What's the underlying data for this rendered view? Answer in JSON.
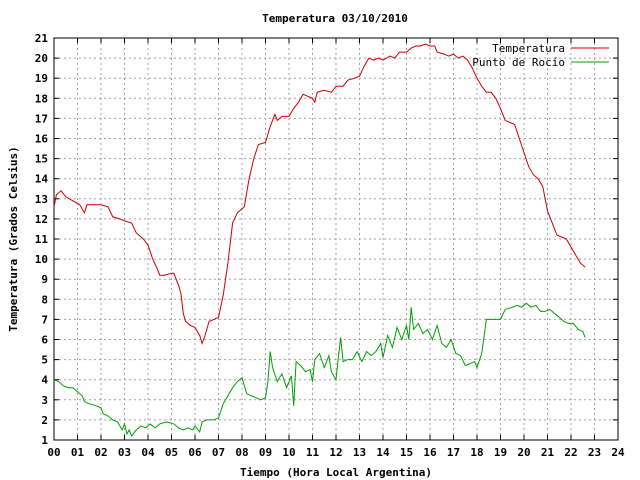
{
  "chart_data": {
    "type": "line",
    "title": "Temperatura 03/10/2010",
    "xlabel": "Tiempo (Hora Local Argentina)",
    "ylabel": "Temperatura (Grados Celsius)",
    "xlim": [
      0,
      24
    ],
    "ylim": [
      1,
      21
    ],
    "xticks": [
      "00",
      "01",
      "02",
      "03",
      "04",
      "05",
      "06",
      "07",
      "08",
      "09",
      "10",
      "11",
      "12",
      "13",
      "14",
      "15",
      "16",
      "17",
      "18",
      "19",
      "20",
      "21",
      "22",
      "23",
      "24"
    ],
    "yticks": [
      1,
      2,
      3,
      4,
      5,
      6,
      7,
      8,
      9,
      10,
      11,
      12,
      13,
      14,
      15,
      16,
      17,
      18,
      19,
      20,
      21
    ],
    "grid": true,
    "legend_position": "top-right",
    "series": [
      {
        "name": "Temperatura",
        "color": "#cc0000",
        "points": [
          [
            0.0,
            12.6
          ],
          [
            0.1,
            13.2
          ],
          [
            0.3,
            13.4
          ],
          [
            0.5,
            13.1
          ],
          [
            0.8,
            12.9
          ],
          [
            1.1,
            12.7
          ],
          [
            1.3,
            12.3
          ],
          [
            1.4,
            12.7
          ],
          [
            1.7,
            12.7
          ],
          [
            2.0,
            12.7
          ],
          [
            2.3,
            12.6
          ],
          [
            2.5,
            12.1
          ],
          [
            2.8,
            12.0
          ],
          [
            3.0,
            11.9
          ],
          [
            3.3,
            11.8
          ],
          [
            3.5,
            11.3
          ],
          [
            3.8,
            11.0
          ],
          [
            4.0,
            10.7
          ],
          [
            4.2,
            10.0
          ],
          [
            4.4,
            9.5
          ],
          [
            4.5,
            9.2
          ],
          [
            4.7,
            9.2
          ],
          [
            5.0,
            9.3
          ],
          [
            5.1,
            9.3
          ],
          [
            5.3,
            8.7
          ],
          [
            5.4,
            8.3
          ],
          [
            5.5,
            7.3
          ],
          [
            5.6,
            6.9
          ],
          [
            5.8,
            6.7
          ],
          [
            6.0,
            6.6
          ],
          [
            6.1,
            6.4
          ],
          [
            6.2,
            6.2
          ],
          [
            6.3,
            5.8
          ],
          [
            6.4,
            6.1
          ],
          [
            6.6,
            6.9
          ],
          [
            6.8,
            7.0
          ],
          [
            7.0,
            7.1
          ],
          [
            7.2,
            8.2
          ],
          [
            7.4,
            9.8
          ],
          [
            7.6,
            11.8
          ],
          [
            7.8,
            12.3
          ],
          [
            8.1,
            12.6
          ],
          [
            8.3,
            14.0
          ],
          [
            8.5,
            15.0
          ],
          [
            8.7,
            15.7
          ],
          [
            9.0,
            15.8
          ],
          [
            9.2,
            16.6
          ],
          [
            9.4,
            17.2
          ],
          [
            9.5,
            16.9
          ],
          [
            9.7,
            17.1
          ],
          [
            10.0,
            17.1
          ],
          [
            10.2,
            17.5
          ],
          [
            10.4,
            17.8
          ],
          [
            10.6,
            18.2
          ],
          [
            10.8,
            18.1
          ],
          [
            11.0,
            18.0
          ],
          [
            11.1,
            17.8
          ],
          [
            11.2,
            18.3
          ],
          [
            11.5,
            18.4
          ],
          [
            11.8,
            18.3
          ],
          [
            12.0,
            18.6
          ],
          [
            12.3,
            18.6
          ],
          [
            12.5,
            18.9
          ],
          [
            12.8,
            19.0
          ],
          [
            13.0,
            19.1
          ],
          [
            13.2,
            19.6
          ],
          [
            13.4,
            20.0
          ],
          [
            13.6,
            19.9
          ],
          [
            13.8,
            20.0
          ],
          [
            14.0,
            19.9
          ],
          [
            14.3,
            20.1
          ],
          [
            14.5,
            20.0
          ],
          [
            14.7,
            20.3
          ],
          [
            15.0,
            20.3
          ],
          [
            15.2,
            20.5
          ],
          [
            15.4,
            20.6
          ],
          [
            15.6,
            20.6
          ],
          [
            15.8,
            20.7
          ],
          [
            16.0,
            20.6
          ],
          [
            16.2,
            20.6
          ],
          [
            16.3,
            20.3
          ],
          [
            16.6,
            20.2
          ],
          [
            16.8,
            20.1
          ],
          [
            17.0,
            20.2
          ],
          [
            17.2,
            20.0
          ],
          [
            17.4,
            20.1
          ],
          [
            17.6,
            19.9
          ],
          [
            17.8,
            19.5
          ],
          [
            18.0,
            19.0
          ],
          [
            18.2,
            18.6
          ],
          [
            18.4,
            18.3
          ],
          [
            18.6,
            18.3
          ],
          [
            18.8,
            18.0
          ],
          [
            19.0,
            17.5
          ],
          [
            19.2,
            16.9
          ],
          [
            19.4,
            16.8
          ],
          [
            19.6,
            16.7
          ],
          [
            19.8,
            16.0
          ],
          [
            20.0,
            15.3
          ],
          [
            20.2,
            14.6
          ],
          [
            20.4,
            14.2
          ],
          [
            20.6,
            14.0
          ],
          [
            20.8,
            13.6
          ],
          [
            21.0,
            12.4
          ],
          [
            21.2,
            11.8
          ],
          [
            21.4,
            11.2
          ],
          [
            21.6,
            11.1
          ],
          [
            21.8,
            11.0
          ],
          [
            22.0,
            10.6
          ],
          [
            22.2,
            10.2
          ],
          [
            22.4,
            9.8
          ],
          [
            22.6,
            9.6
          ]
        ]
      },
      {
        "name": "Punto de Rocío",
        "color": "#00a000",
        "points": [
          [
            0.0,
            4.0
          ],
          [
            0.2,
            3.9
          ],
          [
            0.4,
            3.7
          ],
          [
            0.6,
            3.6
          ],
          [
            0.8,
            3.6
          ],
          [
            1.0,
            3.4
          ],
          [
            1.2,
            3.2
          ],
          [
            1.3,
            2.9
          ],
          [
            1.5,
            2.8
          ],
          [
            1.8,
            2.7
          ],
          [
            2.0,
            2.6
          ],
          [
            2.1,
            2.3
          ],
          [
            2.3,
            2.2
          ],
          [
            2.5,
            2.0
          ],
          [
            2.7,
            1.9
          ],
          [
            2.9,
            1.5
          ],
          [
            3.0,
            1.8
          ],
          [
            3.1,
            1.3
          ],
          [
            3.2,
            1.5
          ],
          [
            3.3,
            1.2
          ],
          [
            3.5,
            1.5
          ],
          [
            3.7,
            1.7
          ],
          [
            3.9,
            1.6
          ],
          [
            4.1,
            1.8
          ],
          [
            4.3,
            1.6
          ],
          [
            4.5,
            1.8
          ],
          [
            4.8,
            1.9
          ],
          [
            5.1,
            1.8
          ],
          [
            5.3,
            1.6
          ],
          [
            5.5,
            1.5
          ],
          [
            5.7,
            1.6
          ],
          [
            5.9,
            1.5
          ],
          [
            6.0,
            1.7
          ],
          [
            6.2,
            1.4
          ],
          [
            6.3,
            1.9
          ],
          [
            6.5,
            2.0
          ],
          [
            6.8,
            2.0
          ],
          [
            7.0,
            2.1
          ],
          [
            7.2,
            2.8
          ],
          [
            7.4,
            3.2
          ],
          [
            7.6,
            3.6
          ],
          [
            7.8,
            3.9
          ],
          [
            8.0,
            4.1
          ],
          [
            8.2,
            3.3
          ],
          [
            8.4,
            3.2
          ],
          [
            8.6,
            3.1
          ],
          [
            8.8,
            3.0
          ],
          [
            9.0,
            3.1
          ],
          [
            9.1,
            3.9
          ],
          [
            9.2,
            5.4
          ],
          [
            9.3,
            4.6
          ],
          [
            9.5,
            3.9
          ],
          [
            9.7,
            4.3
          ],
          [
            9.9,
            3.6
          ],
          [
            10.1,
            4.2
          ],
          [
            10.2,
            2.7
          ],
          [
            10.3,
            4.9
          ],
          [
            10.5,
            4.7
          ],
          [
            10.7,
            4.4
          ],
          [
            10.9,
            4.5
          ],
          [
            11.0,
            3.9
          ],
          [
            11.1,
            5.0
          ],
          [
            11.3,
            5.3
          ],
          [
            11.5,
            4.6
          ],
          [
            11.7,
            5.2
          ],
          [
            11.8,
            4.4
          ],
          [
            12.0,
            4.0
          ],
          [
            12.1,
            5.1
          ],
          [
            12.2,
            6.1
          ],
          [
            12.3,
            4.9
          ],
          [
            12.5,
            5.0
          ],
          [
            12.7,
            5.0
          ],
          [
            12.9,
            5.4
          ],
          [
            13.1,
            4.9
          ],
          [
            13.3,
            5.4
          ],
          [
            13.5,
            5.2
          ],
          [
            13.7,
            5.4
          ],
          [
            13.9,
            5.8
          ],
          [
            14.0,
            5.1
          ],
          [
            14.2,
            6.2
          ],
          [
            14.4,
            5.6
          ],
          [
            14.6,
            6.6
          ],
          [
            14.8,
            6.0
          ],
          [
            15.0,
            6.7
          ],
          [
            15.1,
            6.0
          ],
          [
            15.2,
            7.6
          ],
          [
            15.3,
            6.5
          ],
          [
            15.5,
            6.8
          ],
          [
            15.7,
            6.3
          ],
          [
            15.9,
            6.5
          ],
          [
            16.1,
            6.0
          ],
          [
            16.3,
            6.7
          ],
          [
            16.5,
            5.8
          ],
          [
            16.7,
            5.6
          ],
          [
            16.9,
            6.0
          ],
          [
            17.1,
            5.3
          ],
          [
            17.3,
            5.2
          ],
          [
            17.5,
            4.7
          ],
          [
            17.7,
            4.8
          ],
          [
            17.9,
            4.9
          ],
          [
            18.0,
            4.6
          ],
          [
            18.2,
            5.3
          ],
          [
            18.4,
            7.0
          ],
          [
            18.7,
            7.0
          ],
          [
            19.0,
            7.0
          ],
          [
            19.2,
            7.5
          ],
          [
            19.5,
            7.6
          ],
          [
            19.7,
            7.7
          ],
          [
            19.9,
            7.6
          ],
          [
            20.1,
            7.8
          ],
          [
            20.3,
            7.6
          ],
          [
            20.5,
            7.7
          ],
          [
            20.7,
            7.4
          ],
          [
            20.9,
            7.4
          ],
          [
            21.1,
            7.5
          ],
          [
            21.3,
            7.3
          ],
          [
            21.5,
            7.1
          ],
          [
            21.7,
            6.9
          ],
          [
            21.9,
            6.8
          ],
          [
            22.1,
            6.8
          ],
          [
            22.3,
            6.5
          ],
          [
            22.5,
            6.4
          ],
          [
            22.6,
            6.1
          ]
        ]
      }
    ]
  }
}
